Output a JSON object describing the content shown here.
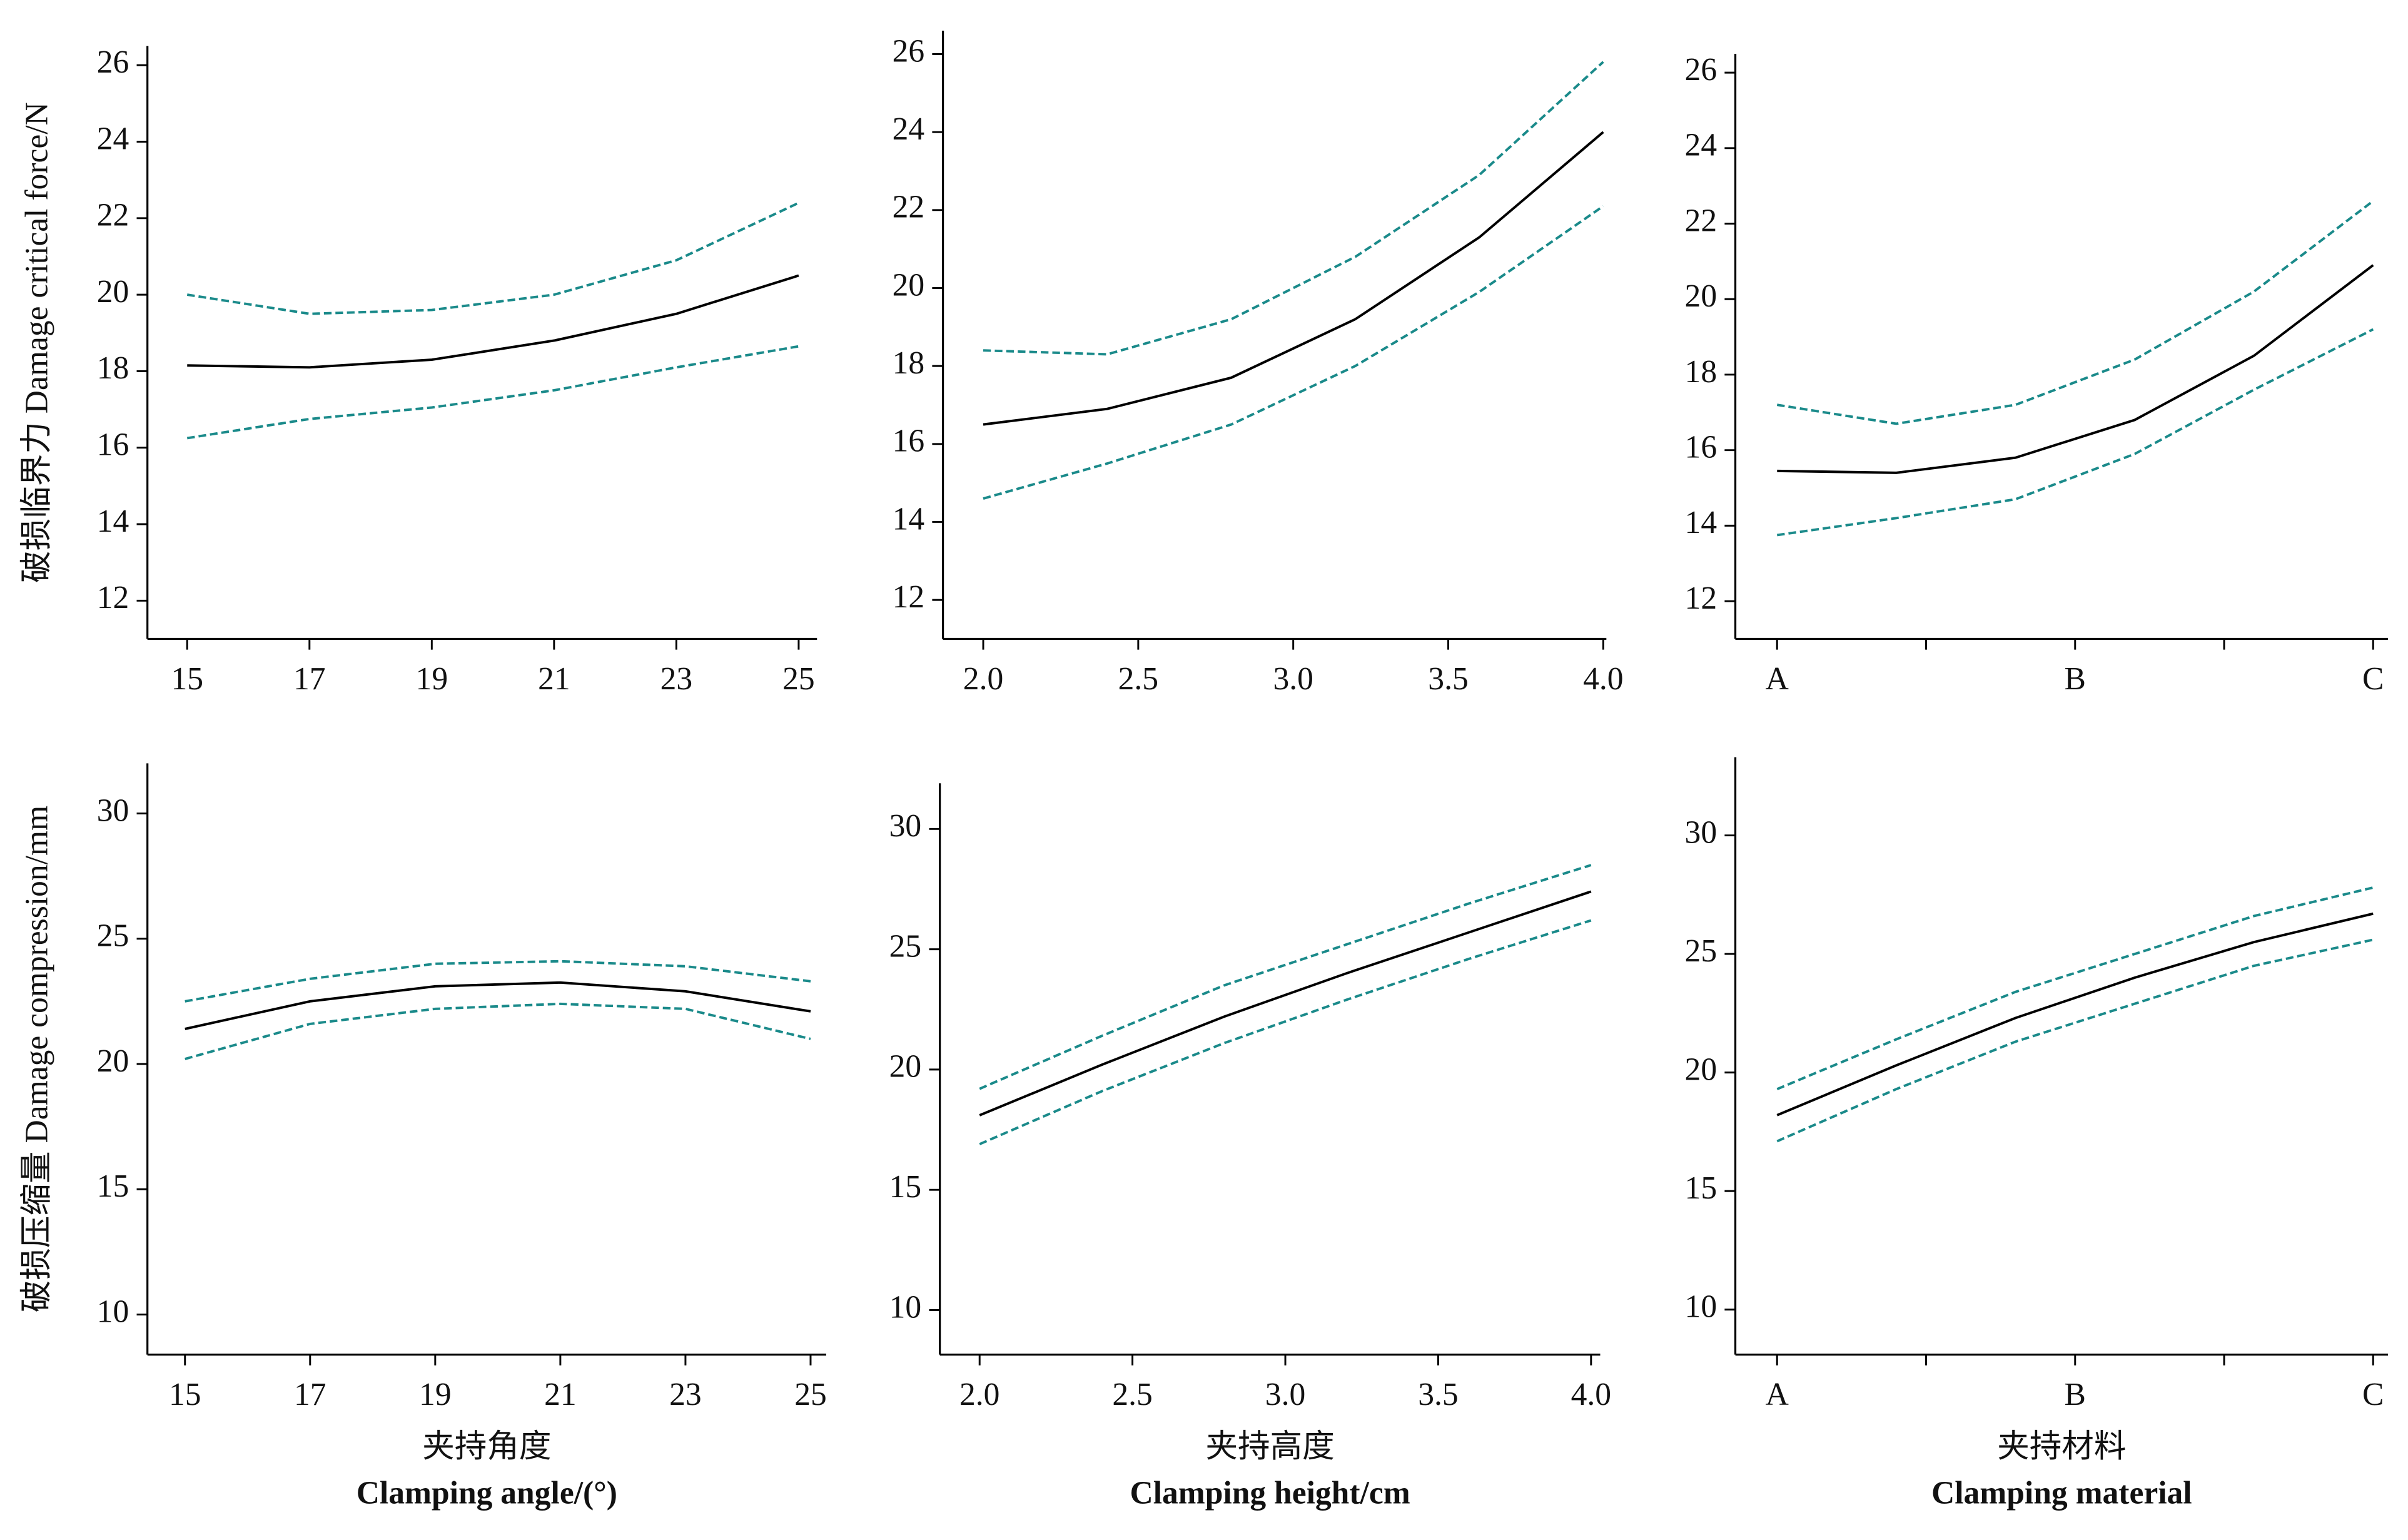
{
  "chart_data": [
    {
      "type": "line",
      "ylabel": "破损临界力 Damage critical force/N",
      "xlim": [
        14.35,
        25.3
      ],
      "ylim": [
        11,
        26.5
      ],
      "xticks": [
        15,
        17,
        19,
        21,
        23,
        25
      ],
      "yticks": [
        12,
        14,
        16,
        18,
        20,
        22,
        24,
        26
      ],
      "x": [
        15,
        17,
        19,
        21,
        23,
        25
      ],
      "series": [
        {
          "color": "#000000",
          "linestyle": "solid",
          "values": [
            18.15,
            18.1,
            18.3,
            18.8,
            19.5,
            20.5
          ]
        },
        {
          "color": "#1a8a8a",
          "linestyle": "dashed",
          "values": [
            20.0,
            19.5,
            19.6,
            20.0,
            20.9,
            22.4
          ]
        },
        {
          "color": "#1a8a8a",
          "linestyle": "dashed",
          "values": [
            16.25,
            16.75,
            17.05,
            17.5,
            18.1,
            18.65
          ]
        }
      ]
    },
    {
      "type": "line",
      "xlim": [
        1.87,
        4.01
      ],
      "ylim": [
        11,
        26.6
      ],
      "xticks": [
        {
          "value": 2,
          "label": "2.0"
        },
        2.5,
        {
          "value": 3,
          "label": "3.0"
        },
        3.5,
        {
          "value": 4,
          "label": "4.0"
        }
      ],
      "yticks": [
        12,
        14,
        16,
        18,
        20,
        22,
        24,
        26
      ],
      "x": [
        2.0,
        2.4,
        2.8,
        3.2,
        3.6,
        4.0
      ],
      "series": [
        {
          "color": "#000000",
          "linestyle": "solid",
          "values": [
            16.5,
            16.9,
            17.7,
            19.2,
            21.3,
            24.0
          ]
        },
        {
          "color": "#1a8a8a",
          "linestyle": "dashed",
          "values": [
            18.4,
            18.3,
            19.2,
            20.8,
            22.9,
            25.8
          ]
        },
        {
          "color": "#1a8a8a",
          "linestyle": "dashed",
          "values": [
            14.6,
            15.5,
            16.5,
            18.0,
            19.9,
            22.1
          ]
        }
      ]
    },
    {
      "type": "line",
      "xlim": [
        -0.28,
        4.1
      ],
      "ylim": [
        11,
        26.5
      ],
      "xticks": [
        {
          "value": 0,
          "label": "A"
        },
        {
          "value": 1,
          "label": null
        },
        {
          "value": 2,
          "label": "B"
        },
        {
          "value": 3,
          "label": null
        },
        {
          "value": 4,
          "label": "C"
        }
      ],
      "yticks": [
        12,
        14,
        16,
        18,
        20,
        22,
        24,
        26
      ],
      "x": [
        0,
        0.8,
        1.6,
        2.4,
        3.2,
        4
      ],
      "series": [
        {
          "color": "#000000",
          "linestyle": "solid",
          "values": [
            15.45,
            15.4,
            15.8,
            16.8,
            18.5,
            20.9
          ]
        },
        {
          "color": "#1a8a8a",
          "linestyle": "dashed",
          "values": [
            17.2,
            16.7,
            17.2,
            18.4,
            20.2,
            22.6
          ]
        },
        {
          "color": "#1a8a8a",
          "linestyle": "dashed",
          "values": [
            13.75,
            14.2,
            14.7,
            15.9,
            17.6,
            19.2
          ]
        }
      ]
    },
    {
      "type": "line",
      "ylabel": "破损压缩量 Damage compression/mm",
      "xlabel": [
        "夹持角度",
        "Clamping angle/(°)"
      ],
      "xlim": [
        14.4,
        25.25
      ],
      "ylim": [
        8.4,
        32
      ],
      "xticks": [
        15,
        17,
        19,
        21,
        23,
        25
      ],
      "yticks": [
        10,
        15,
        20,
        25,
        30
      ],
      "x": [
        15,
        17,
        19,
        21,
        23,
        25
      ],
      "series": [
        {
          "color": "#000000",
          "linestyle": "solid",
          "values": [
            21.4,
            22.5,
            23.1,
            23.25,
            22.9,
            22.1
          ]
        },
        {
          "color": "#1a8a8a",
          "linestyle": "dashed",
          "values": [
            22.5,
            23.4,
            24.0,
            24.1,
            23.9,
            23.3
          ]
        },
        {
          "color": "#1a8a8a",
          "linestyle": "dashed",
          "values": [
            20.2,
            21.6,
            22.2,
            22.4,
            22.2,
            21.0
          ]
        }
      ]
    },
    {
      "type": "line",
      "xlabel": [
        "夹持高度",
        "Clamping height/cm"
      ],
      "xlim": [
        1.87,
        4.03
      ],
      "ylim": [
        8.15,
        31.9
      ],
      "xticks": [
        {
          "value": 2,
          "label": "2.0"
        },
        2.5,
        {
          "value": 3,
          "label": "3.0"
        },
        3.5,
        {
          "value": 4,
          "label": "4.0"
        }
      ],
      "yticks": [
        10,
        15,
        20,
        25,
        30
      ],
      "x": [
        2.0,
        2.4,
        2.8,
        3.2,
        3.6,
        4.0
      ],
      "series": [
        {
          "color": "#000000",
          "linestyle": "solid",
          "values": [
            18.1,
            20.2,
            22.2,
            24.0,
            25.7,
            27.4
          ]
        },
        {
          "color": "#1a8a8a",
          "linestyle": "dashed",
          "values": [
            19.2,
            21.4,
            23.5,
            25.2,
            26.9,
            28.5
          ]
        },
        {
          "color": "#1a8a8a",
          "linestyle": "dashed",
          "values": [
            16.9,
            19.1,
            21.1,
            22.9,
            24.6,
            26.2
          ]
        }
      ]
    },
    {
      "type": "line",
      "xlabel": [
        "夹持材料",
        "Clamping material"
      ],
      "xlim": [
        -0.28,
        4.1
      ],
      "ylim": [
        8.1,
        33.3
      ],
      "xticks": [
        {
          "value": 0,
          "label": "A"
        },
        {
          "value": 1,
          "label": null
        },
        {
          "value": 2,
          "label": "B"
        },
        {
          "value": 3,
          "label": null
        },
        {
          "value": 4,
          "label": "C"
        }
      ],
      "yticks": [
        10,
        15,
        20,
        25,
        30
      ],
      "x": [
        0,
        0.8,
        1.6,
        2.4,
        3.2,
        4
      ],
      "series": [
        {
          "color": "#000000",
          "linestyle": "solid",
          "values": [
            18.2,
            20.3,
            22.3,
            24.0,
            25.5,
            26.7
          ]
        },
        {
          "color": "#1a8a8a",
          "linestyle": "dashed",
          "values": [
            19.3,
            21.4,
            23.4,
            25.0,
            26.6,
            27.8
          ]
        },
        {
          "color": "#1a8a8a",
          "linestyle": "dashed",
          "values": [
            17.1,
            19.3,
            21.3,
            22.9,
            24.5,
            25.6
          ]
        }
      ]
    }
  ]
}
